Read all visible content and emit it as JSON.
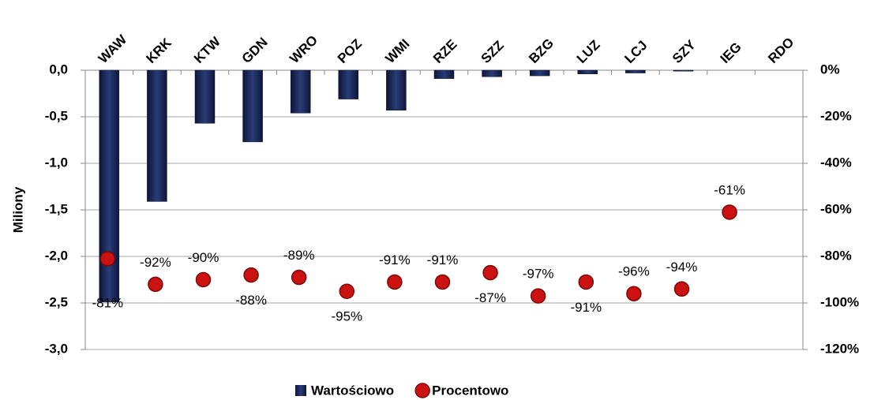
{
  "chart_data": {
    "type": "bar",
    "y_label": "Miliony",
    "categories": [
      "WAW",
      "KRK",
      "KTW",
      "GDN",
      "WRO",
      "POZ",
      "WMI",
      "RZE",
      "SZZ",
      "BZG",
      "LUZ",
      "LCJ",
      "SZY",
      "IEG",
      "RDO"
    ],
    "series": [
      {
        "name": "Wartościowo",
        "type": "bar",
        "color": "#1c2a5a",
        "values": [
          -2.49,
          -1.41,
          -0.57,
          -0.77,
          -0.46,
          -0.31,
          -0.43,
          -0.09,
          -0.07,
          -0.06,
          -0.04,
          -0.03,
          -0.01,
          0,
          0
        ]
      },
      {
        "name": "Procentowo",
        "type": "scatter",
        "axis": "y2",
        "color": "#cc1111",
        "values": [
          -81,
          -92,
          -90,
          -88,
          -89,
          -95,
          -91,
          -91,
          -87,
          -97,
          -91,
          -96,
          -94,
          -61,
          null
        ],
        "value_labels": [
          "-81%",
          "-92%",
          "-90%",
          "-88%",
          "-89%",
          "-95%",
          "-91%",
          "-91%",
          "-87%",
          "-97%",
          "-91%",
          "-96%",
          "-94%",
          "-61%",
          null
        ]
      }
    ],
    "ylim": [
      -3.0,
      0
    ],
    "yticks": [
      {
        "value": 0,
        "label": "0,0"
      },
      {
        "value": -0.5,
        "label": "-0,5"
      },
      {
        "value": -1.0,
        "label": "-1,0"
      },
      {
        "value": -1.5,
        "label": "-1,5"
      },
      {
        "value": -2.0,
        "label": "-2,0"
      },
      {
        "value": -2.5,
        "label": "-2,5"
      },
      {
        "value": -3.0,
        "label": "-3,0"
      }
    ],
    "y2lim": [
      -120,
      0
    ],
    "y2ticks": [
      {
        "value": 0,
        "label": "0%"
      },
      {
        "value": -20,
        "label": "-20%"
      },
      {
        "value": -40,
        "label": "-40%"
      },
      {
        "value": -60,
        "label": "-60%"
      },
      {
        "value": -80,
        "label": "-80%"
      },
      {
        "value": -100,
        "label": "-100%"
      },
      {
        "value": -120,
        "label": "-120%"
      }
    ],
    "grid": true,
    "legend": "bottom"
  }
}
